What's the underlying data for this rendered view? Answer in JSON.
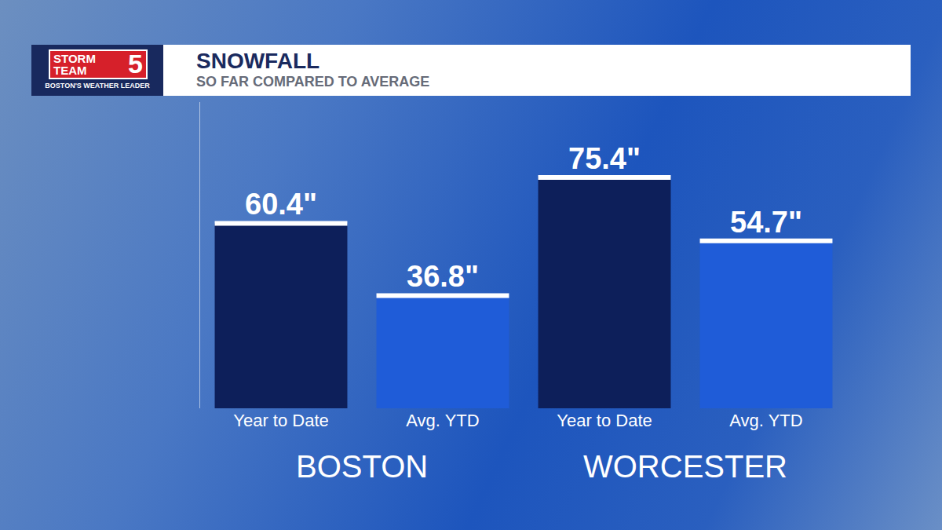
{
  "chart_data": {
    "type": "bar",
    "title": "SNOWFALL",
    "subtitle": "SO FAR COMPARED TO AVERAGE",
    "logo": {
      "text": "STORM TEAM",
      "number": "5",
      "tagline": "BOSTON'S WEATHER LEADER"
    },
    "categories": [
      "Year to Date",
      "Avg. YTD",
      "Year to Date",
      "Avg. YTD"
    ],
    "groups": [
      "BOSTON",
      "WORCESTER"
    ],
    "values": [
      60.4,
      36.8,
      75.4,
      54.7
    ],
    "value_labels": [
      "60.4\"",
      "36.8\"",
      "75.4\"",
      "54.7\""
    ],
    "colors": [
      "#0d1f5a",
      "#1f5cd8",
      "#0d1f5a",
      "#1f5cd8"
    ],
    "ylim": [
      0,
      100
    ],
    "data_labels": true,
    "tick_labels": "x",
    "grid": false
  }
}
